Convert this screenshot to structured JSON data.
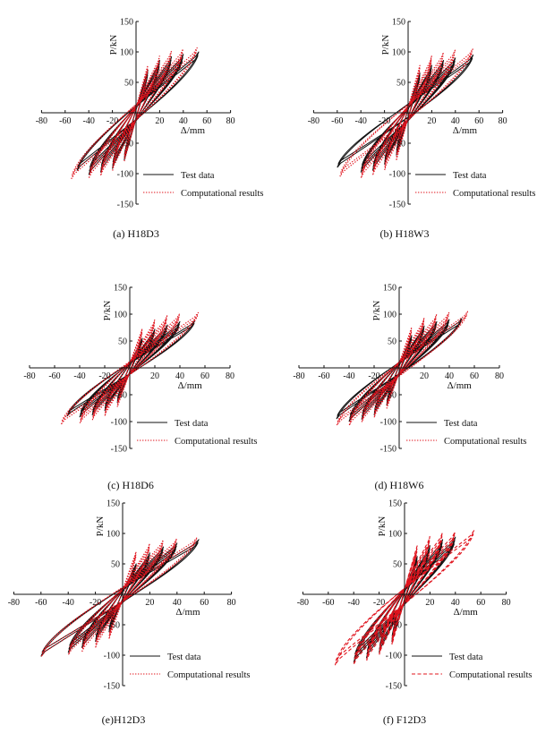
{
  "chart_data": [
    {
      "type": "line",
      "caption": "(a) H18D3",
      "xlabel": "Δ/mm",
      "ylabel": "P/kN",
      "xlim": [
        -80,
        80
      ],
      "ylim": [
        -150,
        150
      ],
      "xticks": [
        -80,
        -60,
        -40,
        -20,
        0,
        20,
        40,
        60,
        80
      ],
      "yticks": [
        -150,
        -100,
        -50,
        0,
        50,
        100,
        150
      ],
      "legend_position": "bottom-right",
      "series": [
        {
          "name": "Test data",
          "color": "#111111",
          "style": "solid",
          "envelope": [
            [
              -50,
              -95
            ],
            [
              -40,
              -102
            ],
            [
              -30,
              -98
            ],
            [
              -20,
              -92
            ],
            [
              -10,
              -78
            ],
            [
              0,
              0
            ],
            [
              10,
              70
            ],
            [
              20,
              86
            ],
            [
              30,
              92
            ],
            [
              40,
              96
            ],
            [
              53,
              100
            ]
          ]
        },
        {
          "name": "Computational results",
          "color": "#e0141e",
          "style": "dotted",
          "envelope": [
            [
              -55,
              -112
            ],
            [
              -40,
              -110
            ],
            [
              -30,
              -106
            ],
            [
              -20,
              -98
            ],
            [
              -10,
              -82
            ],
            [
              0,
              0
            ],
            [
              10,
              80
            ],
            [
              20,
              96
            ],
            [
              30,
              104
            ],
            [
              40,
              108
            ],
            [
              52,
              110
            ]
          ]
        }
      ]
    },
    {
      "type": "line",
      "caption": "(b) H18W3",
      "xlabel": "Δ/mm",
      "ylabel": "P/kN",
      "xlim": [
        -80,
        80
      ],
      "ylim": [
        -150,
        150
      ],
      "xticks": [
        -80,
        -60,
        -40,
        -20,
        0,
        20,
        40,
        60,
        80
      ],
      "yticks": [
        -150,
        -100,
        -50,
        0,
        50,
        100,
        150
      ],
      "legend_position": "bottom-right",
      "series": [
        {
          "name": "Test data",
          "color": "#111111",
          "style": "solid",
          "envelope": [
            [
              -60,
              -90
            ],
            [
              -40,
              -98
            ],
            [
              -30,
              -95
            ],
            [
              -20,
              -85
            ],
            [
              -10,
              -70
            ],
            [
              0,
              0
            ],
            [
              10,
              65
            ],
            [
              20,
              78
            ],
            [
              30,
              86
            ],
            [
              40,
              90
            ],
            [
              55,
              95
            ]
          ]
        },
        {
          "name": "Computational results",
          "color": "#e0141e",
          "style": "dotted",
          "envelope": [
            [
              -58,
              -108
            ],
            [
              -40,
              -110
            ],
            [
              -30,
              -105
            ],
            [
              -20,
              -97
            ],
            [
              -10,
              -80
            ],
            [
              0,
              0
            ],
            [
              10,
              80
            ],
            [
              20,
              96
            ],
            [
              30,
              102
            ],
            [
              40,
              106
            ],
            [
              55,
              108
            ]
          ]
        }
      ]
    },
    {
      "type": "line",
      "caption": "(c) H18D6",
      "xlabel": "Δ/mm",
      "ylabel": "P/kN",
      "xlim": [
        -80,
        80
      ],
      "ylim": [
        -150,
        150
      ],
      "xticks": [
        -80,
        -60,
        -40,
        -20,
        0,
        20,
        40,
        60,
        80
      ],
      "yticks": [
        -150,
        -100,
        -50,
        0,
        50,
        100,
        150
      ],
      "legend_position": "bottom-right",
      "series": [
        {
          "name": "Test data",
          "color": "#111111",
          "style": "solid",
          "envelope": [
            [
              -50,
              -90
            ],
            [
              -40,
              -92
            ],
            [
              -30,
              -88
            ],
            [
              -20,
              -80
            ],
            [
              -10,
              -65
            ],
            [
              0,
              0
            ],
            [
              10,
              55
            ],
            [
              20,
              72
            ],
            [
              30,
              80
            ],
            [
              40,
              86
            ],
            [
              52,
              88
            ]
          ]
        },
        {
          "name": "Computational results",
          "color": "#e0141e",
          "style": "dotted",
          "envelope": [
            [
              -55,
              -108
            ],
            [
              -40,
              -106
            ],
            [
              -30,
              -100
            ],
            [
              -20,
              -92
            ],
            [
              -10,
              -75
            ],
            [
              0,
              0
            ],
            [
              10,
              75
            ],
            [
              20,
              92
            ],
            [
              30,
              100
            ],
            [
              40,
              104
            ],
            [
              55,
              106
            ]
          ]
        }
      ]
    },
    {
      "type": "line",
      "caption": "(d) H18W6",
      "xlabel": "Δ/mm",
      "ylabel": "P/kN",
      "xlim": [
        -80,
        80
      ],
      "ylim": [
        -150,
        150
      ],
      "xticks": [
        -80,
        -60,
        -40,
        -20,
        0,
        20,
        40,
        60,
        80
      ],
      "yticks": [
        -150,
        -100,
        -50,
        0,
        50,
        100,
        150
      ],
      "legend_position": "bottom-right",
      "series": [
        {
          "name": "Test data",
          "color": "#111111",
          "style": "solid",
          "envelope": [
            [
              -50,
              -95
            ],
            [
              -40,
              -100
            ],
            [
              -30,
              -96
            ],
            [
              -20,
              -88
            ],
            [
              -10,
              -70
            ],
            [
              0,
              0
            ],
            [
              10,
              60
            ],
            [
              20,
              78
            ],
            [
              30,
              86
            ],
            [
              40,
              90
            ],
            [
              50,
              92
            ]
          ]
        },
        {
          "name": "Computational results",
          "color": "#e0141e",
          "style": "dotted",
          "envelope": [
            [
              -50,
              -110
            ],
            [
              -40,
              -110
            ],
            [
              -30,
              -104
            ],
            [
              -20,
              -95
            ],
            [
              -10,
              -78
            ],
            [
              0,
              0
            ],
            [
              10,
              78
            ],
            [
              20,
              95
            ],
            [
              30,
              102
            ],
            [
              40,
              106
            ],
            [
              55,
              108
            ]
          ]
        }
      ]
    },
    {
      "type": "line",
      "caption": "(e)H12D3",
      "xlabel": "Δ/mm",
      "ylabel": "P/kN",
      "xlim": [
        -80,
        80
      ],
      "ylim": [
        -150,
        150
      ],
      "xticks": [
        -80,
        -60,
        -40,
        -20,
        0,
        20,
        40,
        60,
        80
      ],
      "yticks": [
        -150,
        -100,
        -50,
        0,
        50,
        100,
        150
      ],
      "legend_position": "bottom-right",
      "series": [
        {
          "name": "Test data",
          "color": "#111111",
          "style": "solid",
          "envelope": [
            [
              -60,
              -102
            ],
            [
              -40,
              -96
            ],
            [
              -30,
              -88
            ],
            [
              -20,
              -78
            ],
            [
              -10,
              -62
            ],
            [
              0,
              0
            ],
            [
              10,
              50
            ],
            [
              20,
              68
            ],
            [
              30,
              78
            ],
            [
              40,
              84
            ],
            [
              56,
              90
            ]
          ]
        },
        {
          "name": "Computational results",
          "color": "#e0141e",
          "style": "dotted",
          "envelope": [
            [
              -60,
              -105
            ],
            [
              -40,
              -102
            ],
            [
              -30,
              -97
            ],
            [
              -20,
              -90
            ],
            [
              -10,
              -75
            ],
            [
              0,
              0
            ],
            [
              10,
              72
            ],
            [
              20,
              86
            ],
            [
              30,
              92
            ],
            [
              40,
              94
            ],
            [
              55,
              96
            ]
          ]
        }
      ]
    },
    {
      "type": "line",
      "caption": "(f) F12D3",
      "xlabel": "Δ/mm",
      "ylabel": "P/kN",
      "xlim": [
        -80,
        80
      ],
      "ylim": [
        -150,
        150
      ],
      "xticks": [
        -80,
        -60,
        -40,
        -20,
        0,
        20,
        40,
        60,
        80
      ],
      "yticks": [
        -150,
        -100,
        -50,
        0,
        50,
        100,
        150
      ],
      "legend_position": "bottom-right",
      "series": [
        {
          "name": "Test data",
          "color": "#111111",
          "style": "solid",
          "envelope": [
            [
              -40,
              -112
            ],
            [
              -30,
              -105
            ],
            [
              -20,
              -96
            ],
            [
              -10,
              -78
            ],
            [
              0,
              0
            ],
            [
              10,
              62
            ],
            [
              20,
              80
            ],
            [
              30,
              90
            ],
            [
              40,
              94
            ]
          ]
        },
        {
          "name": "Computational results",
          "color": "#e0141e",
          "style": "dashed",
          "envelope": [
            [
              -55,
              -120
            ],
            [
              -40,
              -118
            ],
            [
              -30,
              -112
            ],
            [
              -20,
              -102
            ],
            [
              -10,
              -85
            ],
            [
              0,
              0
            ],
            [
              10,
              82
            ],
            [
              20,
              98
            ],
            [
              30,
              104
            ],
            [
              40,
              106
            ],
            [
              55,
              108
            ]
          ]
        }
      ]
    }
  ]
}
